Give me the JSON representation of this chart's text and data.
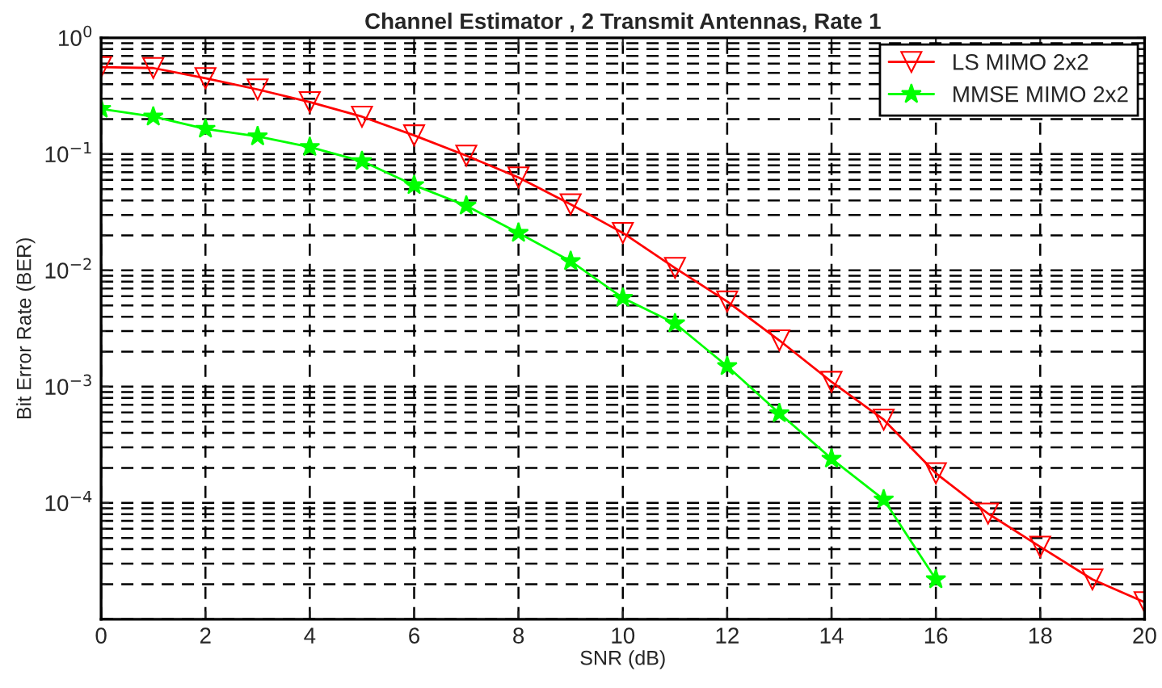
{
  "chart_data": {
    "type": "line",
    "title": "Channel Estimator , 2 Transmit Antennas, Rate 1",
    "xlabel": "SNR (dB)",
    "ylabel": "Bit Error Rate (BER)",
    "x": [
      0,
      1,
      2,
      3,
      4,
      5,
      6,
      7,
      8,
      9,
      10,
      11,
      12,
      13,
      14,
      15,
      16,
      17,
      18,
      19,
      20
    ],
    "series": [
      {
        "name": "LS MIMO 2x2",
        "color": "#ff0000",
        "marker": "triangle",
        "values": [
          0.56,
          0.55,
          0.45,
          0.36,
          0.28,
          0.21,
          0.145,
          0.097,
          0.063,
          0.037,
          0.021,
          0.0105,
          0.0054,
          0.0025,
          0.0011,
          0.00052,
          0.00018,
          8.1e-05,
          4.2e-05,
          2.2e-05,
          1.4e-05
        ]
      },
      {
        "name": "MMSE MIMO 2x2",
        "color": "#00ff00",
        "marker": "star",
        "values": [
          0.245,
          0.21,
          0.165,
          0.142,
          0.115,
          0.087,
          0.054,
          0.036,
          0.021,
          0.012,
          0.0058,
          0.0035,
          0.0015,
          0.00059,
          0.00024,
          0.000107,
          2.2e-05,
          null,
          null,
          null,
          null
        ]
      }
    ],
    "log": "y",
    "xlim": [
      0,
      20
    ],
    "xticks": [
      0,
      2,
      4,
      6,
      8,
      10,
      12,
      14,
      16,
      18,
      20
    ],
    "ylim": [
      1e-05,
      1
    ],
    "yticks": [
      {
        "value": 1e-05,
        "label": null
      },
      {
        "value": 0.0001,
        "label": "10$^{−4}$"
      },
      {
        "value": 0.001,
        "label": "10$^{−3}$"
      },
      {
        "value": 0.01,
        "label": "10$^{−2}$"
      },
      {
        "value": 0.1,
        "label": "10$^{−1}$"
      },
      {
        "value": 1,
        "label": "10$^{0}$"
      }
    ],
    "grid": true,
    "legend": "top right",
    "line_style": "solid"
  }
}
